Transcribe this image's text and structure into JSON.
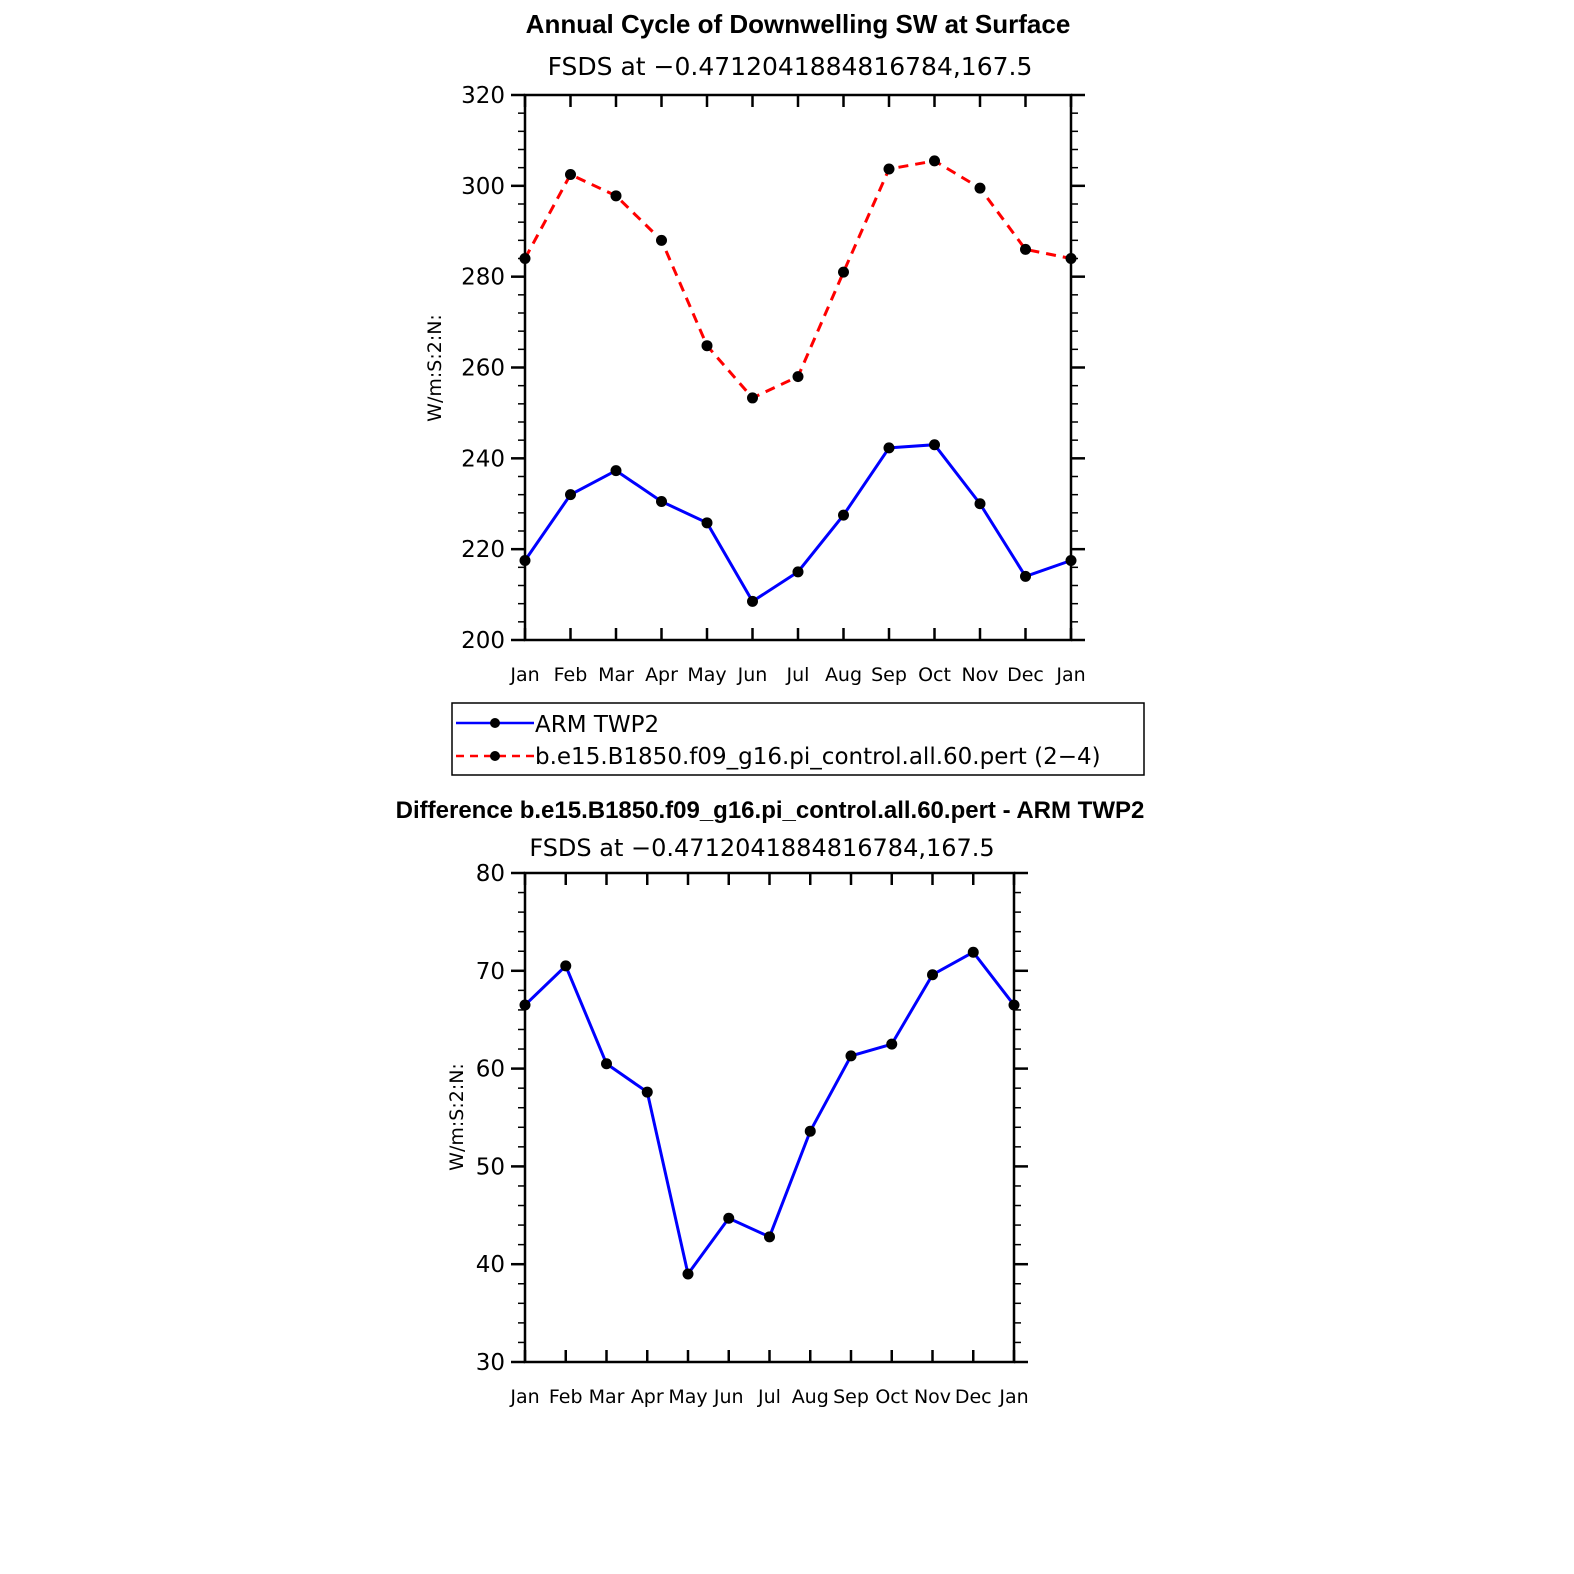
{
  "chart_data": [
    {
      "type": "line",
      "title": "Annual Cycle of Downwelling SW at Surface",
      "subtitle": "FSDS at −0.4712041884816784,167.5",
      "xlabel": "",
      "ylabel": "W/m:S:2:N:",
      "ylim": [
        200,
        320
      ],
      "yticks": [
        "200",
        "220",
        "240",
        "260",
        "280",
        "300",
        "320"
      ],
      "categories": [
        "Jan",
        "Feb",
        "Mar",
        "Apr",
        "May",
        "Jun",
        "Jul",
        "Aug",
        "Sep",
        "Oct",
        "Nov",
        "Dec",
        "Jan"
      ],
      "series": [
        {
          "name": "ARM TWP2",
          "color": "#0000ff",
          "dashed": false,
          "values": [
            217.5,
            232,
            237.3,
            230.5,
            225.8,
            208.5,
            215,
            227.5,
            242.3,
            243,
            230,
            214,
            217.5
          ]
        },
        {
          "name": "b.e15.B1850.f09_g16.pi_control.all.60.pert (2−4)",
          "color": "#ff0000",
          "dashed": true,
          "values": [
            284,
            302.5,
            297.8,
            288,
            264.8,
            253.3,
            258,
            281,
            303.7,
            305.5,
            299.5,
            286,
            284
          ]
        }
      ],
      "legend": "bottom"
    },
    {
      "type": "line",
      "title": "Difference b.e15.B1850.f09_g16.pi_control.all.60.pert - ARM TWP2",
      "subtitle": "FSDS at −0.4712041884816784,167.5",
      "xlabel": "",
      "ylabel": "W/m:S:2:N:",
      "ylim": [
        30,
        80
      ],
      "yticks": [
        "30",
        "40",
        "50",
        "60",
        "70",
        "80"
      ],
      "categories": [
        "Jan",
        "Feb",
        "Mar",
        "Apr",
        "May",
        "Jun",
        "Jul",
        "Aug",
        "Sep",
        "Oct",
        "Nov",
        "Dec",
        "Jan"
      ],
      "series": [
        {
          "name": "Difference",
          "color": "#0000ff",
          "dashed": false,
          "values": [
            66.5,
            70.5,
            60.5,
            57.6,
            39,
            44.7,
            42.8,
            53.6,
            61.3,
            62.5,
            69.6,
            71.9,
            66.5
          ]
        }
      ]
    }
  ]
}
